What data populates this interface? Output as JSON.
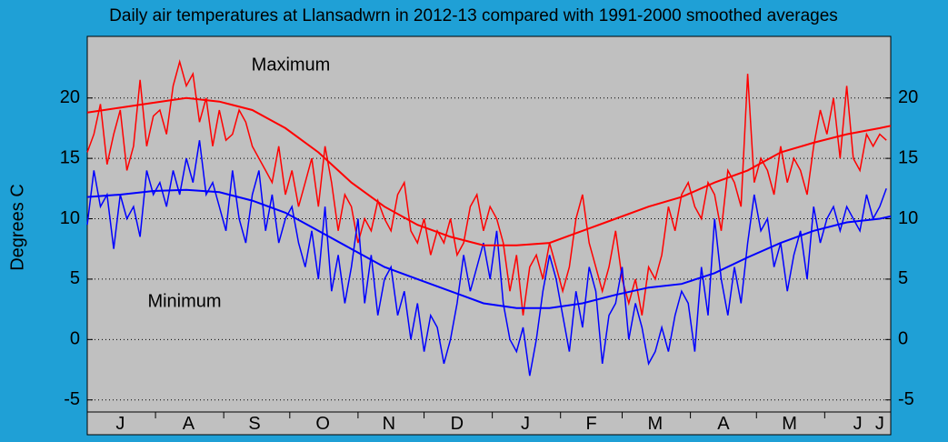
{
  "chart_data": {
    "type": "line",
    "title": "Daily air temperatures at Llansadwrn in 2012-13 compared with 1991-2000 smoothed averages",
    "y_label": "Degrees  C",
    "xlim": [
      0,
      365
    ],
    "xticks": [
      {
        "value": 15,
        "label": "J"
      },
      {
        "value": 46,
        "label": "A"
      },
      {
        "value": 76,
        "label": "S"
      },
      {
        "value": 107,
        "label": "O"
      },
      {
        "value": 137,
        "label": "N"
      },
      {
        "value": 168,
        "label": "D"
      },
      {
        "value": 199,
        "label": "J"
      },
      {
        "value": 229,
        "label": "F"
      },
      {
        "value": 258,
        "label": "M"
      },
      {
        "value": 289,
        "label": "A"
      },
      {
        "value": 319,
        "label": "M"
      },
      {
        "value": 350,
        "label": "J"
      },
      {
        "value": 360,
        "label": "J"
      }
    ],
    "xminorticks": [
      0,
      31,
      62,
      92,
      123,
      153,
      184,
      215,
      243,
      274,
      304,
      335,
      365
    ],
    "ylim": [
      -6,
      25.1
    ],
    "yticks": [
      -5,
      0,
      5,
      10,
      15,
      20
    ],
    "grid": true,
    "series": [
      {
        "name": "Maximum",
        "color": "#ff0000",
        "x": [
          0,
          3,
          6,
          9,
          12,
          15,
          18,
          21,
          24,
          27,
          30,
          33,
          36,
          39,
          42,
          45,
          48,
          51,
          54,
          57,
          60,
          63,
          66,
          69,
          72,
          75,
          78,
          81,
          84,
          87,
          90,
          93,
          96,
          99,
          102,
          105,
          108,
          111,
          114,
          117,
          120,
          123,
          126,
          129,
          132,
          135,
          138,
          141,
          144,
          147,
          150,
          153,
          156,
          159,
          162,
          165,
          168,
          171,
          174,
          177,
          180,
          183,
          186,
          189,
          192,
          195,
          198,
          201,
          204,
          207,
          210,
          213,
          216,
          219,
          222,
          225,
          228,
          231,
          234,
          237,
          240,
          243,
          246,
          249,
          252,
          255,
          258,
          261,
          264,
          267,
          270,
          273,
          276,
          279,
          282,
          285,
          288,
          291,
          294,
          297,
          300,
          303,
          306,
          309,
          312,
          315,
          318,
          321,
          324,
          327,
          330,
          333,
          336,
          339,
          342,
          345,
          348,
          351,
          354,
          357,
          360,
          363
        ],
        "values": [
          15.5,
          17,
          19.5,
          14.5,
          17,
          19,
          14,
          16,
          21.5,
          16,
          18.5,
          19,
          17,
          21,
          23,
          21,
          22,
          18,
          20,
          16,
          19,
          16.5,
          17,
          19,
          18,
          16,
          15,
          14,
          13,
          16,
          12,
          14,
          11,
          13,
          15,
          11,
          16,
          13,
          9,
          12,
          11,
          8,
          10,
          9,
          11.5,
          10,
          9,
          12,
          13,
          9,
          8,
          10,
          7,
          9,
          8,
          10,
          7,
          8,
          11,
          12,
          9,
          11,
          10,
          8,
          4,
          7,
          2,
          6,
          7,
          5,
          8,
          6,
          4,
          6,
          10,
          12,
          8,
          6,
          4,
          6,
          9,
          5,
          3,
          5,
          2,
          6,
          5,
          7,
          11,
          9,
          12,
          13,
          11,
          10,
          13,
          12,
          9,
          14,
          13,
          11,
          22,
          13,
          15,
          14,
          12,
          16,
          13,
          15,
          14,
          12,
          16,
          19,
          17,
          20,
          15,
          21,
          15,
          14,
          17,
          16,
          17,
          16.5
        ]
      },
      {
        "name": "Minimum",
        "color": "#0000ff",
        "x": [
          0,
          3,
          6,
          9,
          12,
          15,
          18,
          21,
          24,
          27,
          30,
          33,
          36,
          39,
          42,
          45,
          48,
          51,
          54,
          57,
          60,
          63,
          66,
          69,
          72,
          75,
          78,
          81,
          84,
          87,
          90,
          93,
          96,
          99,
          102,
          105,
          108,
          111,
          114,
          117,
          120,
          123,
          126,
          129,
          132,
          135,
          138,
          141,
          144,
          147,
          150,
          153,
          156,
          159,
          162,
          165,
          168,
          171,
          174,
          177,
          180,
          183,
          186,
          189,
          192,
          195,
          198,
          201,
          204,
          207,
          210,
          213,
          216,
          219,
          222,
          225,
          228,
          231,
          234,
          237,
          240,
          243,
          246,
          249,
          252,
          255,
          258,
          261,
          264,
          267,
          270,
          273,
          276,
          279,
          282,
          285,
          288,
          291,
          294,
          297,
          300,
          303,
          306,
          309,
          312,
          315,
          318,
          321,
          324,
          327,
          330,
          333,
          336,
          339,
          342,
          345,
          348,
          351,
          354,
          357,
          360,
          363
        ],
        "values": [
          9.5,
          14,
          11,
          12,
          7.5,
          12,
          10,
          11,
          8.5,
          14,
          12,
          13,
          11,
          14,
          12,
          15,
          13,
          16.5,
          12,
          13,
          11,
          9,
          14,
          10,
          8,
          12,
          14,
          9,
          12,
          8,
          10,
          11,
          8,
          6,
          9,
          5,
          11,
          4,
          7,
          3,
          6,
          10,
          3,
          7,
          2,
          5,
          6,
          2,
          4,
          0,
          3,
          -1,
          2,
          1,
          -2,
          0,
          3,
          7,
          4,
          6,
          8,
          5,
          9,
          3,
          0,
          -1,
          1,
          -3,
          0,
          4,
          7,
          5,
          2,
          -1,
          4,
          1,
          6,
          4,
          -2,
          2,
          3,
          6,
          0,
          3,
          1,
          -2,
          -1,
          1,
          -1,
          2,
          4,
          3,
          -1,
          6,
          2,
          10,
          5,
          2,
          6,
          3,
          8,
          12,
          9,
          10,
          6,
          8,
          4,
          7,
          9,
          5,
          11,
          8,
          10,
          11,
          9,
          11,
          10,
          9,
          12,
          10,
          11,
          12.5
        ]
      },
      {
        "color": "#ff0000",
        "x": [
          0,
          15,
          30,
          45,
          60,
          75,
          90,
          105,
          120,
          135,
          150,
          165,
          180,
          195,
          210,
          225,
          240,
          255,
          270,
          285,
          300,
          315,
          330,
          345,
          360,
          365
        ],
        "values": [
          18.8,
          19.2,
          19.6,
          20,
          19.7,
          19,
          17.5,
          15.5,
          13,
          11,
          9.5,
          8.5,
          7.8,
          7.8,
          8,
          9,
          10,
          11,
          11.8,
          13,
          14,
          15.5,
          16.3,
          17,
          17.5,
          17.7
        ]
      },
      {
        "color": "#0000ff",
        "x": [
          0,
          15,
          30,
          45,
          60,
          75,
          90,
          105,
          120,
          135,
          150,
          165,
          180,
          195,
          210,
          225,
          240,
          255,
          270,
          285,
          300,
          315,
          330,
          345,
          360,
          365
        ],
        "values": [
          11.8,
          12,
          12.3,
          12.4,
          12.2,
          11.5,
          10.5,
          9,
          7.5,
          6,
          5,
          4,
          3,
          2.6,
          2.6,
          3,
          3.7,
          4.3,
          4.6,
          5.5,
          6.8,
          8,
          9,
          9.7,
          10,
          10.2
        ]
      }
    ]
  }
}
